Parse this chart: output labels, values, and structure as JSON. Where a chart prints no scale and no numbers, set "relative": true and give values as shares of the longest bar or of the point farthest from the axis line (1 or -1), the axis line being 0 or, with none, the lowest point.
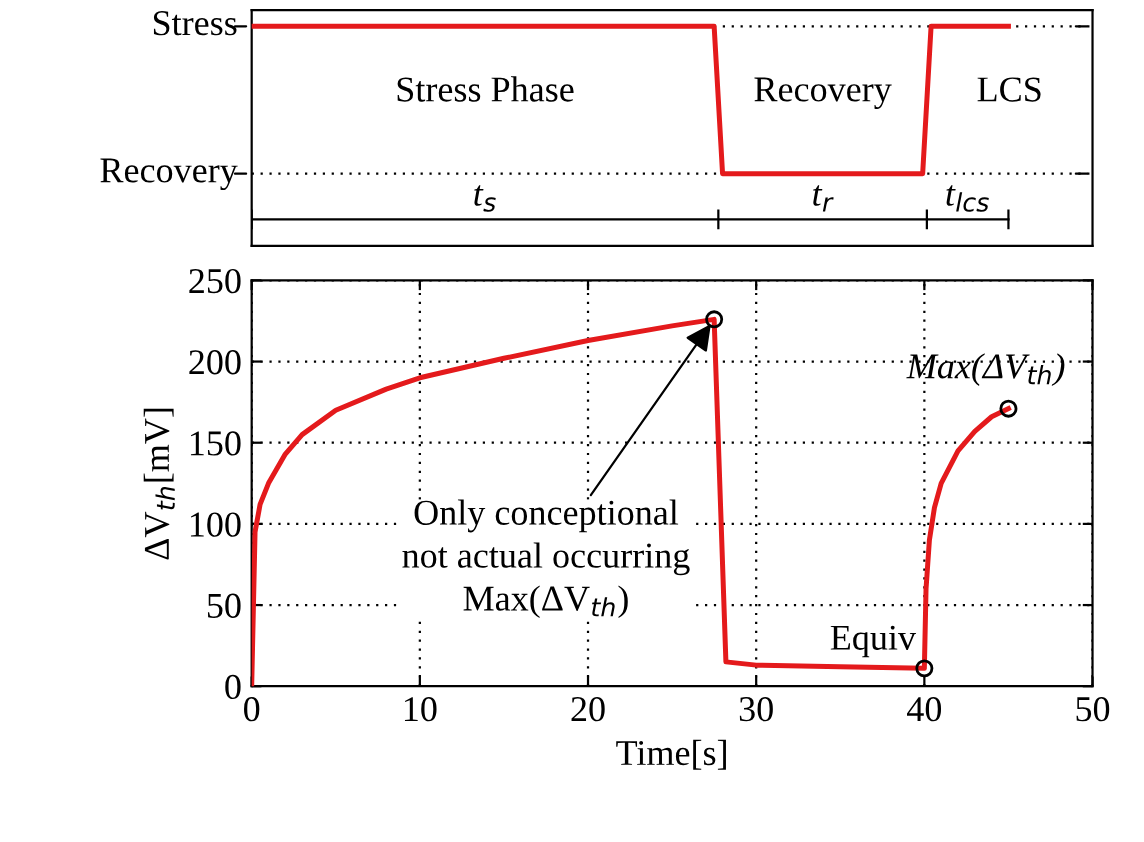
{
  "chart_data": [
    {
      "type": "line",
      "x": [
        0,
        27.5,
        28,
        39.9,
        40.4,
        45
      ],
      "series": [
        {
          "color": "#e41a1c",
          "values": [
            1,
            1,
            0,
            0,
            1,
            1
          ]
        }
      ],
      "relative": true,
      "ref_lines": [
        {
          "axis": "y",
          "value": 1,
          "label": "Stress",
          "line_style": "dotted"
        },
        {
          "axis": "y",
          "value": 0,
          "label": "Recovery",
          "line_style": "dotted"
        }
      ],
      "xlim": [
        0,
        50
      ],
      "annotations": [
        "Stress Phase",
        "Recovery",
        "LCS",
        "t$_{s}$",
        "t$_{r}$",
        "t$_{lcs}$"
      ]
    },
    {
      "type": "line",
      "xlabel": "Time[s]",
      "ylabel": "ΔV$_{th}$[mV]",
      "series": [
        {
          "color": "#e41a1c",
          "x": [
            0,
            0.2,
            0.5,
            1,
            2,
            3,
            5,
            8,
            10,
            15,
            20,
            25,
            27.5,
            28.2,
            30,
            35,
            40,
            40.1,
            40.3,
            40.6,
            41,
            42,
            43,
            44,
            45
          ],
          "values": [
            0,
            95,
            112,
            125,
            143,
            155,
            170,
            183,
            190,
            202,
            213,
            222,
            226,
            15,
            13,
            12,
            11,
            60,
            90,
            110,
            125,
            145,
            157,
            166,
            171
          ]
        },
        {
          "type": "scatter",
          "color": "#000000",
          "marker": "circle",
          "x": [
            27.5,
            40,
            45
          ],
          "values": [
            226,
            11,
            171
          ]
        }
      ],
      "xlim": [
        0,
        50
      ],
      "xticks": [
        0,
        10,
        20,
        30,
        40,
        50
      ],
      "ylim": [
        0,
        250
      ],
      "yticks": [
        0,
        50,
        100,
        150,
        200,
        250
      ],
      "grid": true,
      "annotations": [
        {
          "text": "Only conceptional\nnot actual occurring\nMax(ΔV$_{th}$)",
          "x": 27.5,
          "y": 226
        },
        {
          "text": "Equiv",
          "x": 40,
          "y": 11
        },
        {
          "text": "Max(ΔV$_{th}$)",
          "x": 45,
          "y": 171
        }
      ]
    }
  ]
}
